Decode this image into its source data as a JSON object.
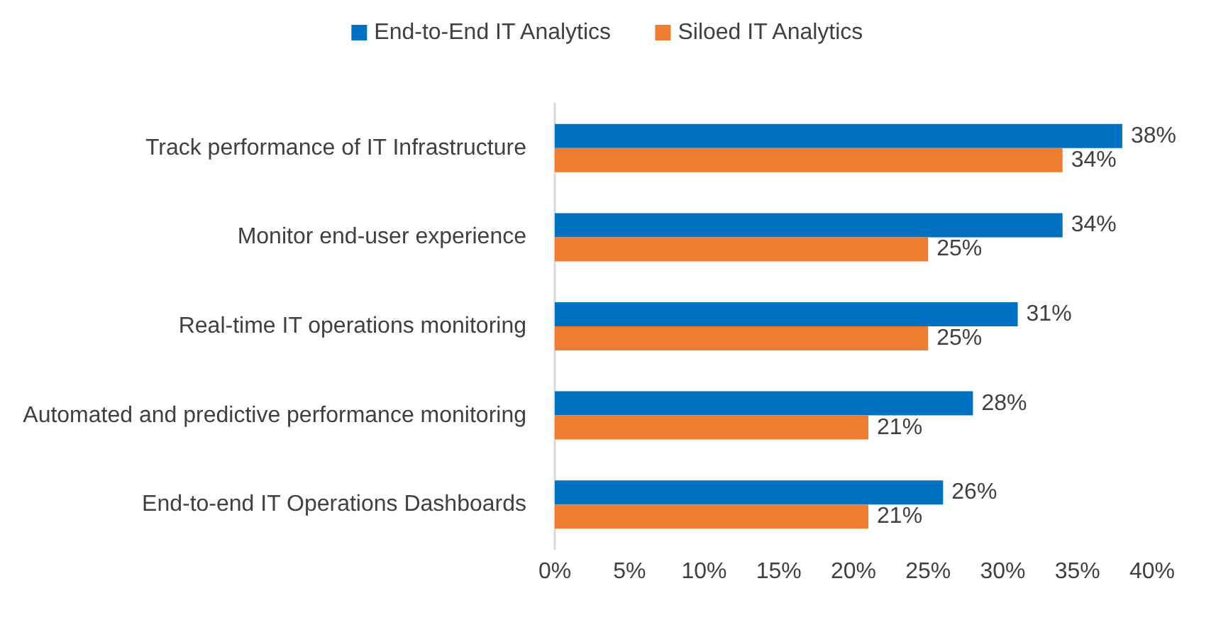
{
  "chart_data": {
    "type": "bar",
    "orientation": "horizontal",
    "categories": [
      "Track performance of IT Infrastructure",
      "Monitor end-user experience",
      "Real-time IT operations monitoring",
      "Automated and predictive performance monitoring",
      "End-to-end IT Operations Dashboards"
    ],
    "series": [
      {
        "name": "End-to-End IT Analytics",
        "color": "#0070c0",
        "values": [
          38,
          34,
          31,
          28,
          26
        ],
        "value_labels": [
          "38%",
          "34%",
          "31%",
          "28%",
          "26%"
        ]
      },
      {
        "name": "Siloed IT Analytics",
        "color": "#ed7d31",
        "values": [
          34,
          25,
          25,
          21,
          21
        ],
        "value_labels": [
          "34%",
          "25%",
          "25%",
          "21%",
          "21%"
        ]
      }
    ],
    "xlim": [
      0,
      40
    ],
    "xticks": [
      {
        "value": 0,
        "label": "0%"
      },
      {
        "value": 5,
        "label": "5%"
      },
      {
        "value": 10,
        "label": "10%"
      },
      {
        "value": 15,
        "label": "15%"
      },
      {
        "value": 20,
        "label": "20%"
      },
      {
        "value": 25,
        "label": "25%"
      },
      {
        "value": 30,
        "label": "30%"
      },
      {
        "value": 35,
        "label": "35%"
      },
      {
        "value": 40,
        "label": "40%"
      }
    ],
    "grid": false,
    "legend": "top"
  }
}
